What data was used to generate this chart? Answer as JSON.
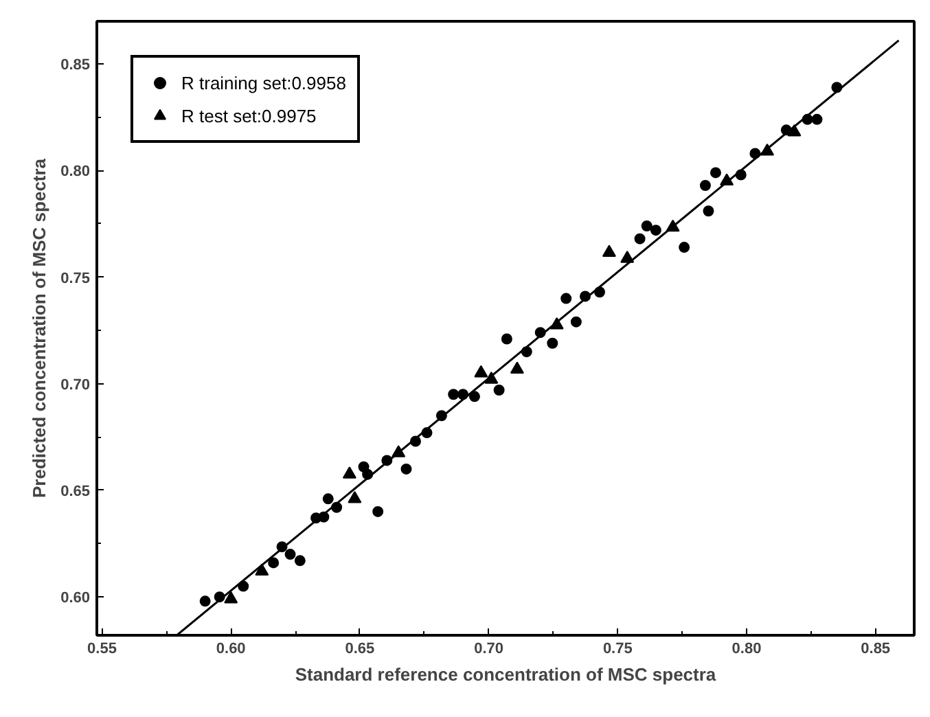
{
  "chart_data": {
    "type": "scatter",
    "xlabel": "Standard reference concentration of MSC spectra",
    "ylabel": "Predicted concentration of MSC spectra",
    "xlim": [
      0.548,
      0.865
    ],
    "ylim": [
      0.582,
      0.87
    ],
    "xticks": [
      {
        "value": 0.55,
        "label": "0.55"
      },
      {
        "value": 0.6,
        "label": "0.60"
      },
      {
        "value": 0.65,
        "label": "0.65"
      },
      {
        "value": 0.7,
        "label": "0.70"
      },
      {
        "value": 0.75,
        "label": "0.75"
      },
      {
        "value": 0.8,
        "label": "0.80"
      },
      {
        "value": 0.85,
        "label": "0.85"
      }
    ],
    "yticks": [
      {
        "value": 0.6,
        "label": "0.60"
      },
      {
        "value": 0.65,
        "label": "0.65"
      },
      {
        "value": 0.7,
        "label": "0.70"
      },
      {
        "value": 0.75,
        "label": "0.75"
      },
      {
        "value": 0.8,
        "label": "0.80"
      },
      {
        "value": 0.85,
        "label": "0.85"
      }
    ],
    "grid": false,
    "legend": "top left",
    "series": [
      {
        "name": "R training set:0.9958",
        "marker": "circle",
        "color": "#000000",
        "x": [
          0.59,
          0.5956,
          0.6048,
          0.6165,
          0.6198,
          0.623,
          0.6268,
          0.633,
          0.636,
          0.6377,
          0.641,
          0.6515,
          0.653,
          0.657,
          0.6605,
          0.668,
          0.6716,
          0.676,
          0.6817,
          0.6863,
          0.69,
          0.6945,
          0.704,
          0.707,
          0.7147,
          0.72,
          0.7247,
          0.7339,
          0.73,
          0.7374,
          0.743,
          0.7586,
          0.7613,
          0.7648,
          0.7758,
          0.7852,
          0.784,
          0.788,
          0.7978,
          0.8033,
          0.8154,
          0.8236,
          0.8273,
          0.835
        ],
        "values": [
          0.598,
          0.6,
          0.605,
          0.616,
          0.6235,
          0.62,
          0.617,
          0.637,
          0.6375,
          0.646,
          0.642,
          0.661,
          0.6575,
          0.64,
          0.664,
          0.66,
          0.673,
          0.677,
          0.685,
          0.695,
          0.695,
          0.694,
          0.697,
          0.721,
          0.715,
          0.724,
          0.719,
          0.729,
          0.74,
          0.741,
          0.743,
          0.768,
          0.774,
          0.772,
          0.764,
          0.781,
          0.793,
          0.799,
          0.798,
          0.808,
          0.819,
          0.824,
          0.824,
          0.839
        ]
      },
      {
        "name": "R test set:0.9975",
        "marker": "triangle",
        "color": "#000000",
        "x": [
          0.6,
          0.612,
          0.646,
          0.648,
          0.665,
          0.697,
          0.701,
          0.711,
          0.7264,
          0.7467,
          0.7537,
          0.7714,
          0.7923,
          0.808,
          0.8185
        ],
        "values": [
          0.599,
          0.612,
          0.6575,
          0.646,
          0.6675,
          0.705,
          0.702,
          0.7067,
          0.7275,
          0.7615,
          0.7587,
          0.7733,
          0.795,
          0.809,
          0.818
        ]
      },
      {
        "type": "line",
        "line_style": "solid",
        "color": "#000000",
        "x": [
          0.579,
          0.859
        ],
        "values": [
          0.582,
          0.861
        ]
      }
    ]
  }
}
